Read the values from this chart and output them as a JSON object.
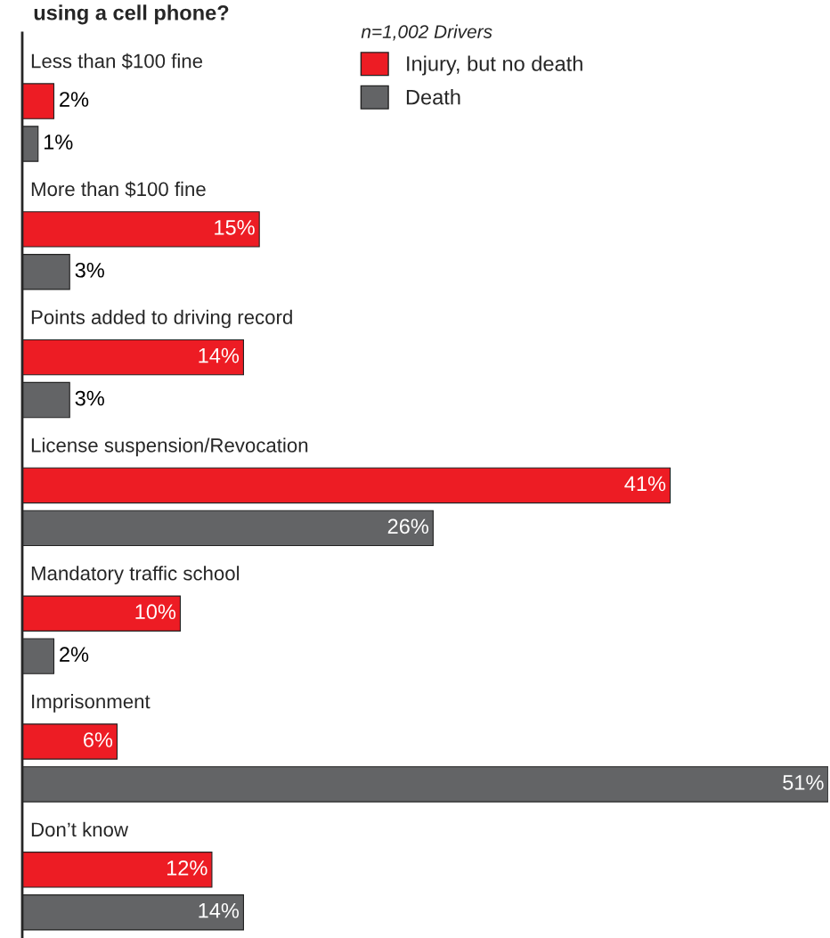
{
  "chart_data": {
    "type": "bar",
    "orientation": "horizontal",
    "title": "using a cell phone?",
    "legend_title": "n=1,002 Drivers",
    "categories": [
      "Less than $100 fine",
      "More than $100 fine",
      "Points added to driving record",
      "License suspension/Revocation",
      "Mandatory traffic school",
      "Imprisonment",
      "Don’t know"
    ],
    "series": [
      {
        "name": "Injury, but no death",
        "color": "#ed1c24",
        "values": [
          2,
          15,
          14,
          41,
          10,
          6,
          12
        ],
        "value_labels": [
          "2%",
          "15%",
          "14%",
          "41%",
          "10%",
          "6%",
          "12%"
        ]
      },
      {
        "name": "Death",
        "color": "#636466",
        "values": [
          1,
          3,
          3,
          26,
          2,
          51,
          14
        ],
        "value_labels": [
          "1%",
          "3%",
          "3%",
          "26%",
          "2%",
          "51%",
          "14%"
        ]
      }
    ],
    "legend": "top right"
  }
}
